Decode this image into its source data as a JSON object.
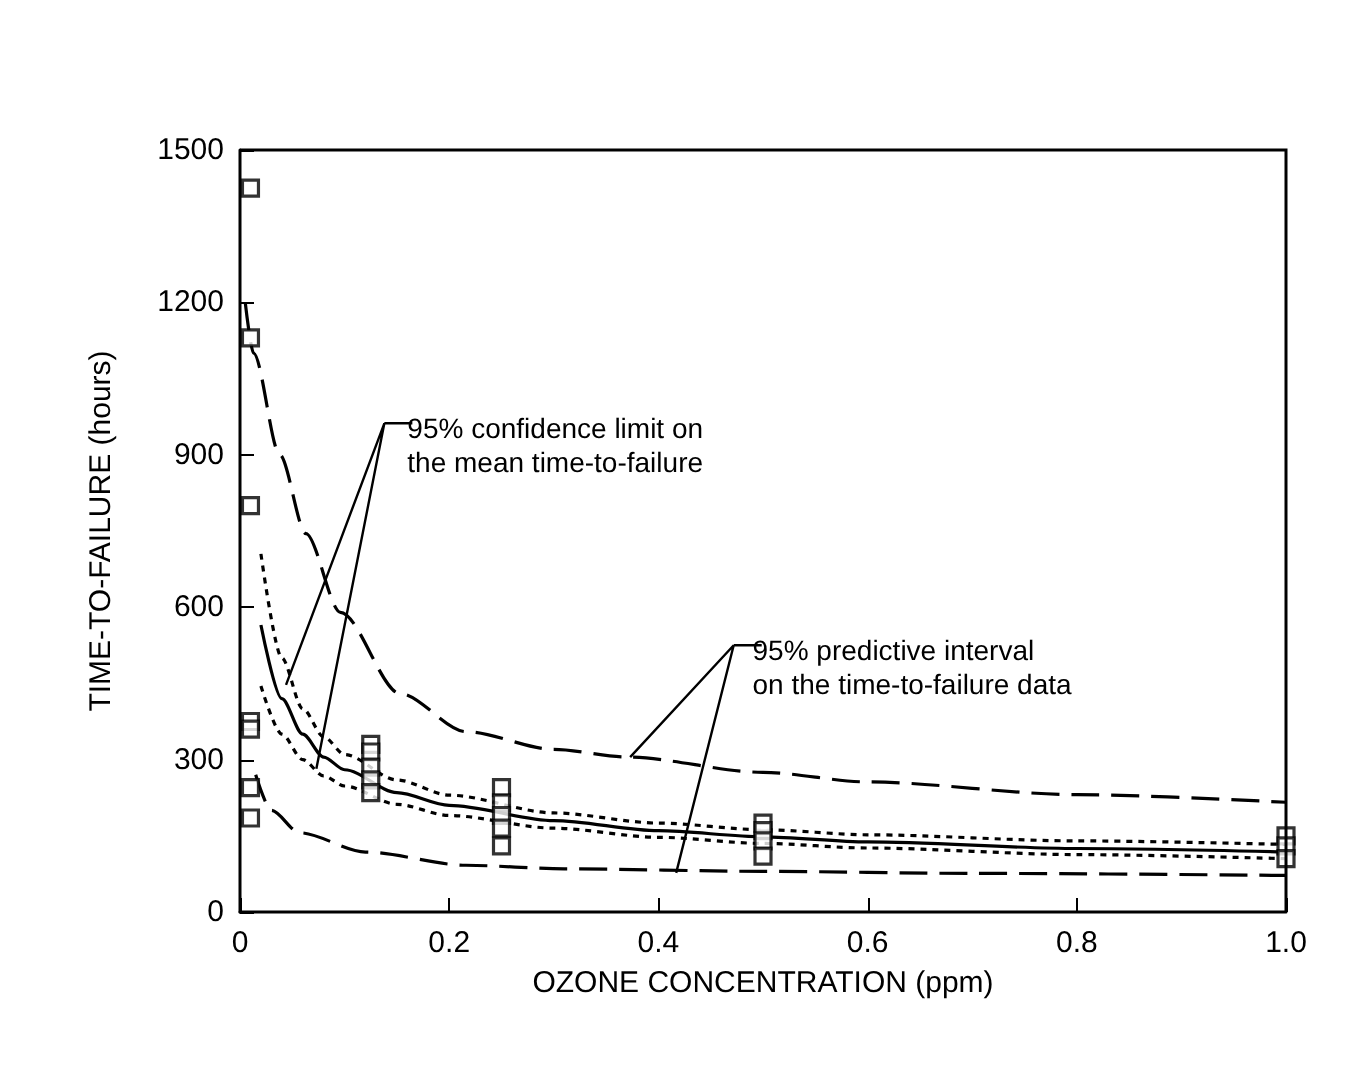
{
  "chart_data": {
    "type": "line",
    "xlabel": "OZONE CONCENTRATION (ppm)",
    "ylabel": "TIME-TO-FAILURE (hours)",
    "xlim": [
      0,
      1
    ],
    "xticks": [
      0,
      0.2,
      0.4,
      0.6,
      0.8,
      {
        "value": 1,
        "label": "1.0"
      }
    ],
    "ylim": [
      0,
      1500
    ],
    "yticks": [
      0,
      300,
      600,
      900,
      1200,
      1500
    ],
    "grid": false,
    "annotations": [
      "95% confidence limit on\nthe mean time-to-failure",
      "95% predictive interval\non the time-to-failure data"
    ],
    "series": [
      {
        "type": "scatter",
        "marker": "square",
        "color": "#000000",
        "x": [
          0.01,
          0.01,
          0.01,
          0.01,
          0.01,
          0.01,
          0.01,
          0.125,
          0.125,
          0.125,
          0.125,
          0.125,
          0.25,
          0.25,
          0.25,
          0.25,
          0.25,
          0.5,
          0.5,
          0.5,
          0.5,
          1,
          1,
          1
        ],
        "values": [
          1425,
          1130,
          800,
          375,
          360,
          245,
          185,
          330,
          315,
          285,
          260,
          235,
          245,
          215,
          190,
          165,
          130,
          175,
          160,
          140,
          110,
          150,
          130,
          105
        ]
      },
      {
        "marker": "none",
        "line_style": "solid",
        "color": "#000000",
        "x": [
          0.02,
          0.04,
          0.06,
          0.08,
          0.1,
          0.15,
          0.2,
          0.3,
          0.4,
          0.5,
          0.6,
          0.8,
          1
        ],
        "values": [
          565,
          420,
          350,
          305,
          280,
          235,
          210,
          180,
          160,
          148,
          138,
          125,
          118
        ]
      },
      {
        "marker": "none",
        "line_style": "dotted",
        "color": "#000000",
        "x": [
          0.02,
          0.04,
          0.06,
          0.08,
          0.1,
          0.15,
          0.2,
          0.3,
          0.4,
          0.5,
          0.6,
          0.8,
          1
        ],
        "values": [
          705,
          500,
          400,
          345,
          310,
          260,
          230,
          195,
          175,
          162,
          152,
          140,
          133
        ]
      },
      {
        "marker": "none",
        "line_style": "dotted",
        "color": "#000000",
        "x": [
          0.02,
          0.04,
          0.06,
          0.08,
          0.1,
          0.15,
          0.2,
          0.3,
          0.4,
          0.5,
          0.6,
          0.8,
          1
        ],
        "values": [
          445,
          350,
          300,
          268,
          248,
          212,
          190,
          165,
          147,
          135,
          126,
          113,
          105
        ]
      },
      {
        "marker": "none",
        "line_style": "dashed",
        "color": "#000000",
        "x": [
          0.005,
          0.013,
          0.038,
          0.063,
          0.096,
          0.153,
          0.216,
          0.3,
          0.37,
          0.5,
          0.6,
          0.8,
          1
        ],
        "values": [
          1200,
          1100,
          900,
          745,
          590,
          430,
          355,
          320,
          305,
          275,
          256,
          231,
          216
        ]
      },
      {
        "marker": "none",
        "line_style": "dashed",
        "color": "#000000",
        "x": [
          0.015,
          0.03,
          0.057,
          0.12,
          0.216,
          0.31,
          0.5,
          0.7,
          1
        ],
        "values": [
          270,
          200,
          156,
          118,
          92,
          85,
          80,
          76,
          72
        ]
      }
    ]
  }
}
